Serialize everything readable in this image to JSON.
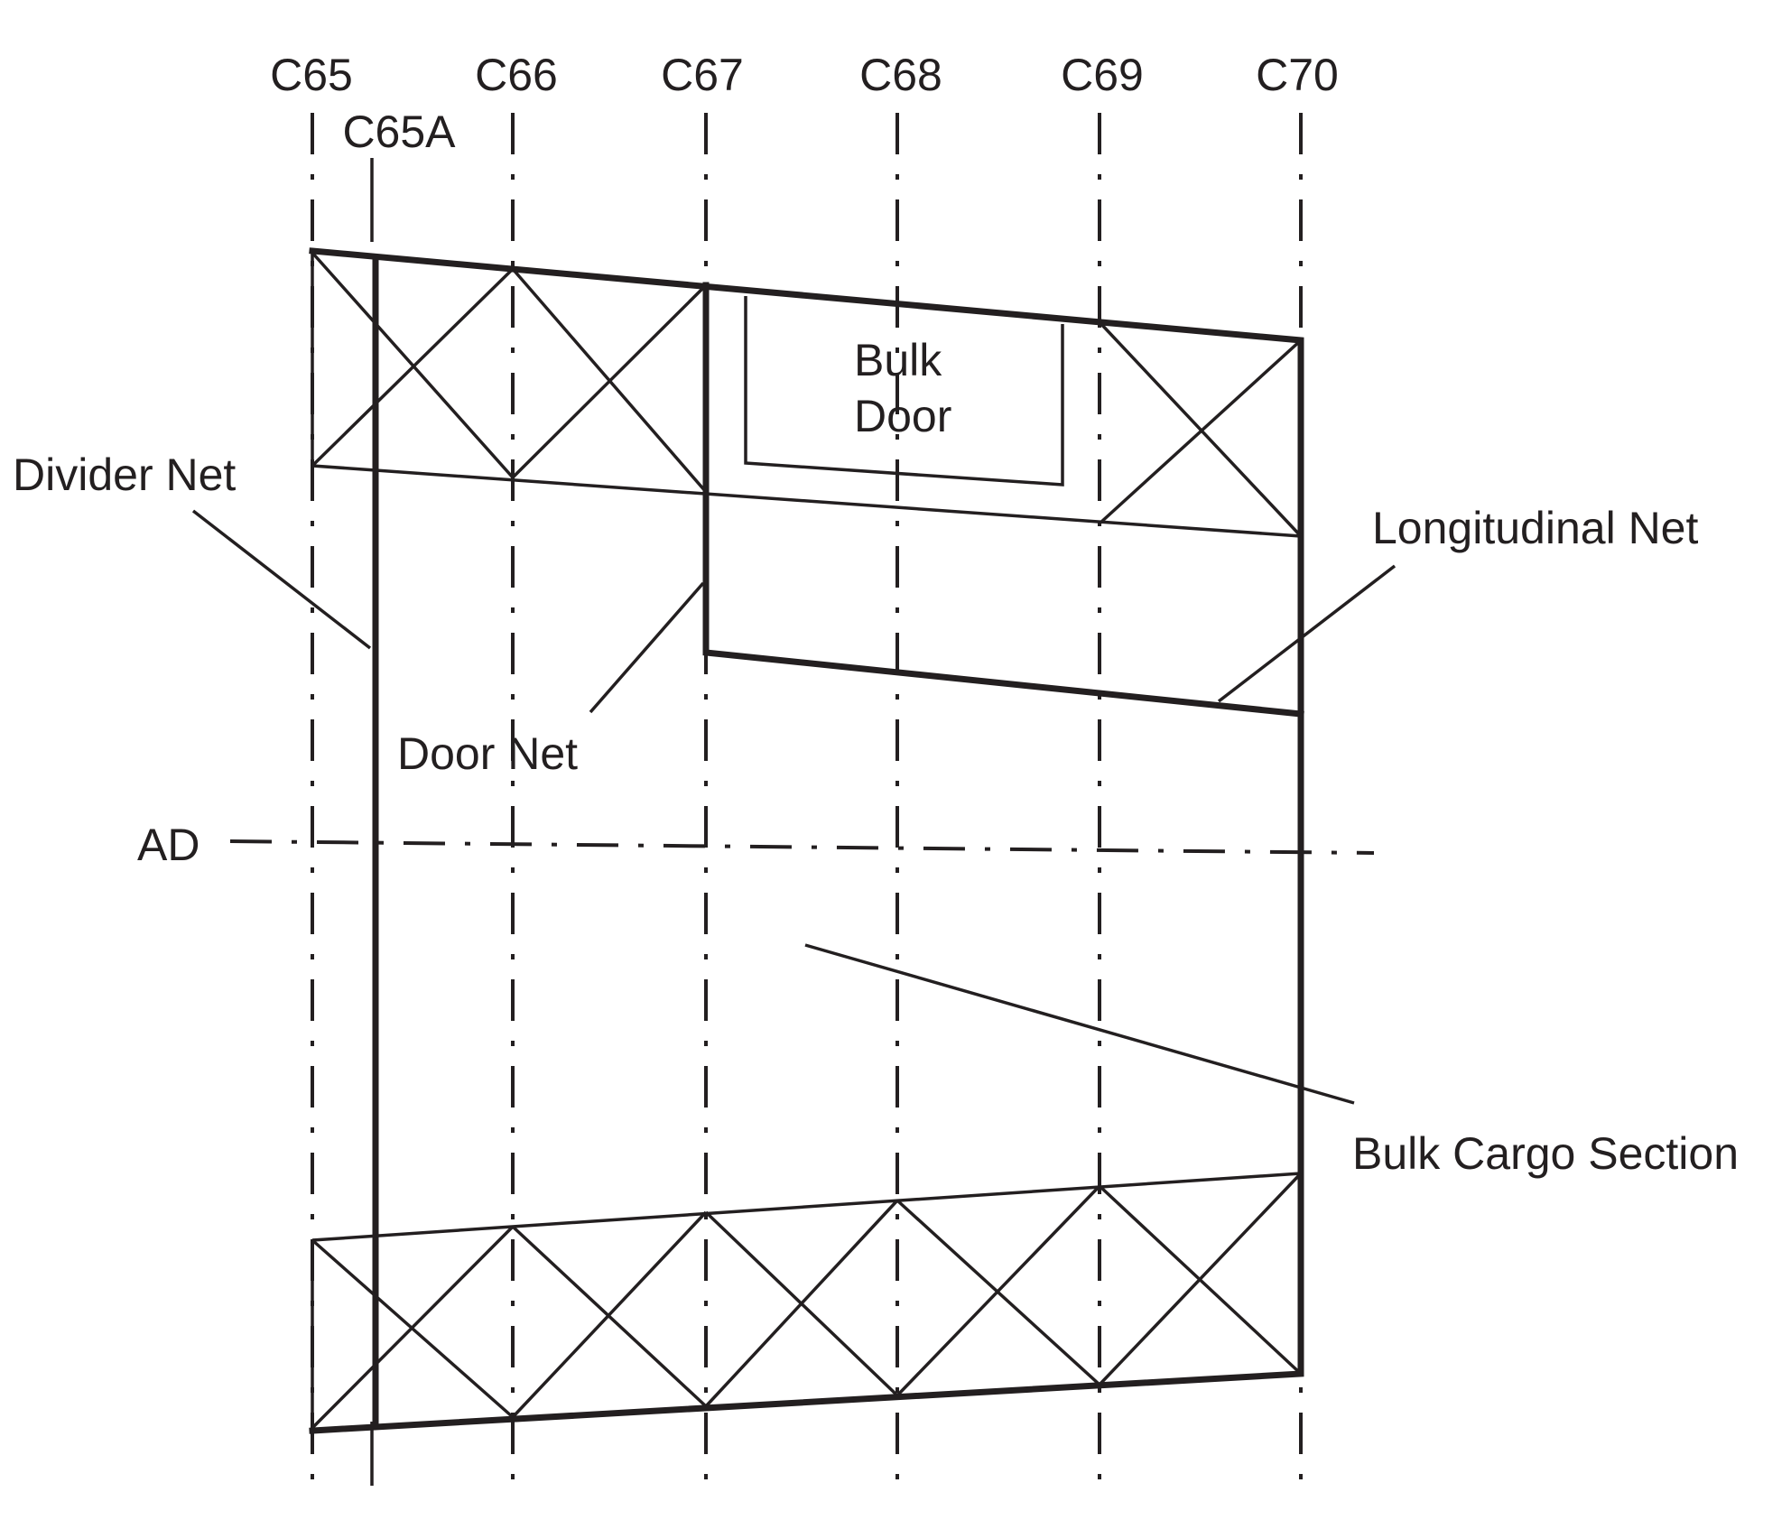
{
  "frames": [
    {
      "id": "c65",
      "label": "C65"
    },
    {
      "id": "c65a",
      "label": "C65A"
    },
    {
      "id": "c66",
      "label": "C66"
    },
    {
      "id": "c67",
      "label": "C67"
    },
    {
      "id": "c68",
      "label": "C68"
    },
    {
      "id": "c69",
      "label": "C69"
    },
    {
      "id": "c70",
      "label": "C70"
    }
  ],
  "labels": {
    "bulk_door_line1": "Bulk",
    "bulk_door_line2": "Door",
    "divider_net": "Divider Net",
    "longitudinal_net": "Longitudinal Net",
    "door_net": "Door Net",
    "ad": "AD",
    "bulk_cargo_section": "Bulk Cargo Section"
  },
  "colors": {
    "ink": "#231f20",
    "background": "#ffffff"
  }
}
